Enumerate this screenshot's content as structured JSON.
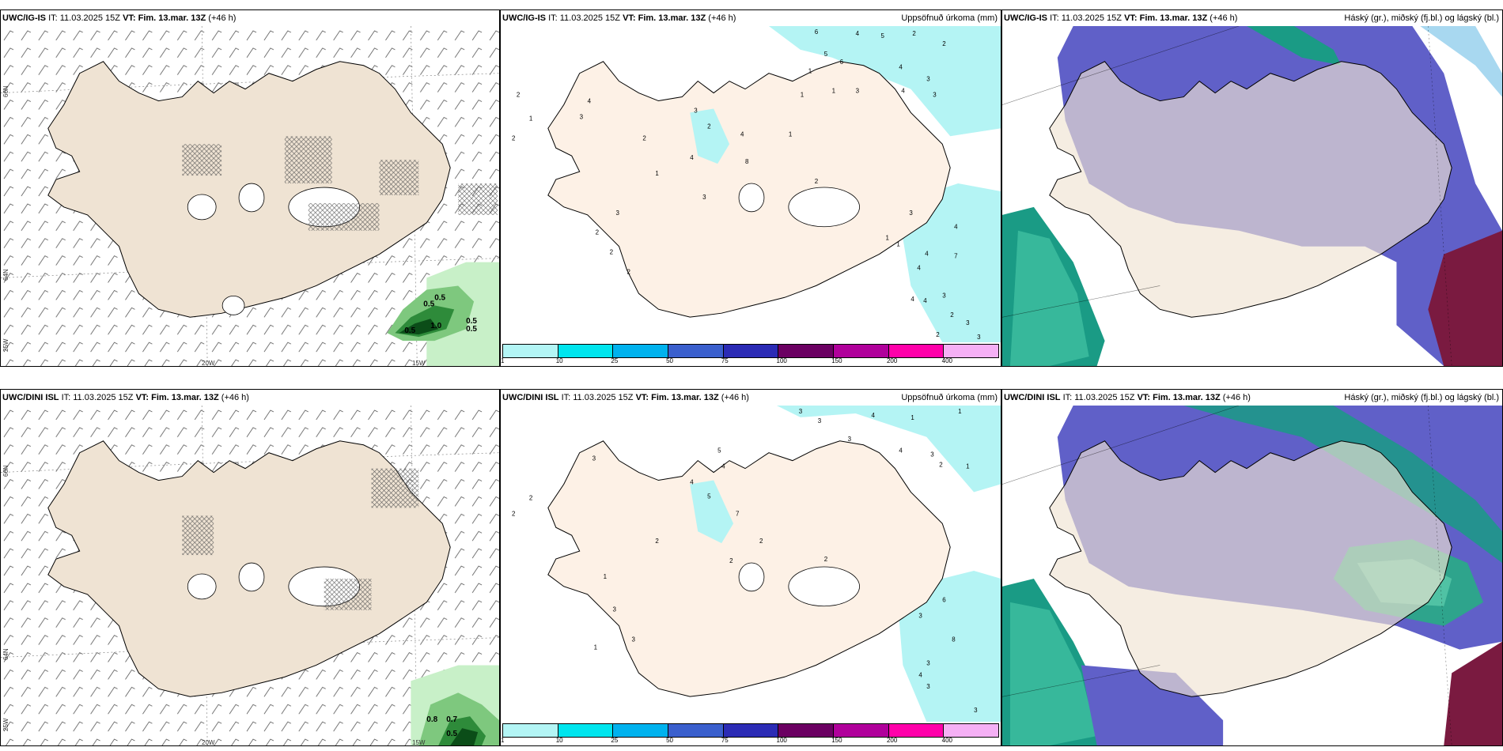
{
  "panels": [
    {
      "id": "top-wind",
      "model": "UWC/IG-IS",
      "it_label": "IT:",
      "it_value": "11.03.2025 15Z",
      "vt_label": "VT:",
      "vt_value": "Fim. 13.mar. 13Z",
      "lead": "(+46 h)",
      "right_title": "",
      "axis": {
        "lat1": "66N",
        "lat2": "64N",
        "lon1": "25W",
        "lon2": "20W",
        "lon3": "15W"
      },
      "values": [
        "0.5",
        "0.5",
        "1.0",
        "0.5",
        "0.5",
        "0.5"
      ]
    },
    {
      "id": "top-precip",
      "model": "UWC/IG-IS",
      "it_label": "IT:",
      "it_value": "11.03.2025 15Z",
      "vt_label": "VT:",
      "vt_value": "Fim. 13.mar. 13Z",
      "lead": "(+46 h)",
      "right_title": "Uppsöfnuð úrkoma (mm)"
    },
    {
      "id": "top-cloud",
      "model": "UWC/IG-IS",
      "it_label": "IT:",
      "it_value": "11.03.2025 15Z",
      "vt_label": "VT:",
      "vt_value": "Fim. 13.mar. 13Z",
      "lead": "(+46 h)",
      "right_title": "Háský (gr.), miðský (fj.bl.) og lágský (bl.)"
    },
    {
      "id": "bottom-wind",
      "model": "UWC/DINI ISL",
      "it_label": "IT:",
      "it_value": "11.03.2025 15Z",
      "vt_label": "VT:",
      "vt_value": "Fim. 13.mar. 13Z",
      "lead": "(+46 h)",
      "right_title": "",
      "axis": {
        "lat1": "66N",
        "lat2": "64N",
        "lon1": "25W",
        "lon2": "20W",
        "lon3": "15W"
      },
      "values": [
        "0.8",
        "0.7",
        "0.5"
      ]
    },
    {
      "id": "bottom-precip",
      "model": "UWC/DINI ISL",
      "it_label": "IT:",
      "it_value": "11.03.2025 15Z",
      "vt_label": "VT:",
      "vt_value": "Fim. 13.mar. 13Z",
      "lead": "(+46 h)",
      "right_title": "Uppsöfnuð úrkoma (mm)"
    },
    {
      "id": "bottom-cloud",
      "model": "UWC/DINI ISL",
      "it_label": "IT:",
      "it_value": "11.03.2025 15Z",
      "vt_label": "VT:",
      "vt_value": "Fim. 13.mar. 13Z",
      "lead": "(+46 h)",
      "right_title": "Háský (gr.), miðský (fj.bl.) og lágský (bl.)"
    }
  ],
  "colorbar": {
    "labels": [
      "1",
      "10",
      "25",
      "50",
      "75",
      "100",
      "150",
      "200",
      "400"
    ],
    "colors": [
      "#b3f5f5",
      "#00e5ee",
      "#00b2ee",
      "#3a5fcd",
      "#2b2bb5",
      "#6b0062",
      "#b0009b",
      "#ff00aa",
      "#f5b0f5"
    ]
  },
  "precip_top_values": [
    "6",
    "4",
    "5",
    "2",
    "2",
    "1",
    "5",
    "6",
    "4",
    "3",
    "1",
    "1",
    "3",
    "4",
    "3",
    "2",
    "1",
    "2",
    "4",
    "3",
    "2",
    "3",
    "2",
    "1",
    "4",
    "3",
    "4",
    "8",
    "2",
    "1",
    "4",
    "3",
    "3",
    "2",
    "2",
    "1",
    "2",
    "1",
    "4",
    "4",
    "7",
    "3",
    "4",
    "2",
    "4",
    "3",
    "2",
    "3"
  ],
  "precip_bottom_values": [
    "3",
    "3",
    "4",
    "1",
    "1",
    "3",
    "5",
    "4",
    "3",
    "2",
    "1",
    "3",
    "2",
    "4",
    "4",
    "5",
    "7",
    "2",
    "2",
    "2",
    "2",
    "1",
    "3",
    "3",
    "6",
    "8",
    "3",
    "3",
    "4",
    "3",
    "3",
    "1",
    "2"
  ],
  "colors": {
    "land": "#efe3d3",
    "land_precip": "#fdf1e6",
    "sea_precip": "#b4f4f4",
    "cloud_high": "#1a9b85",
    "cloud_mid": "#6060c8",
    "cloud_low": "#7a1a40"
  }
}
